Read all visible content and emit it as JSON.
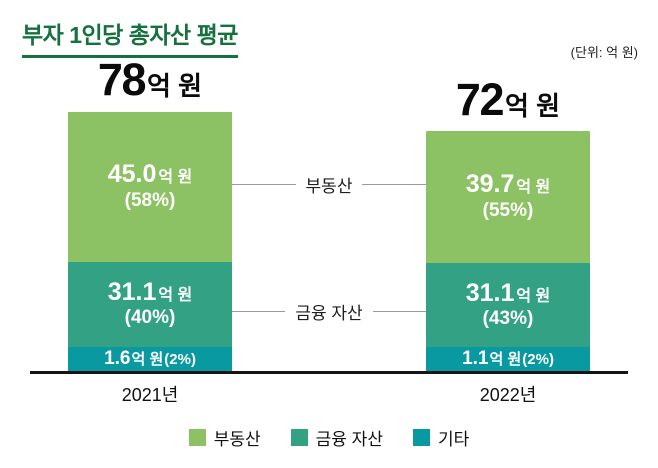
{
  "header": {
    "title": "부자 1인당 총자산 평균",
    "unit_note": "(단위: 억 원)"
  },
  "chart_data": {
    "type": "bar",
    "stacked": true,
    "title": "부자 1인당 총자산 평균",
    "unit": "억 원",
    "categories": [
      "2021년",
      "2022년"
    ],
    "totals": [
      78,
      72
    ],
    "series": [
      {
        "name": "부동산",
        "values": [
          45.0,
          39.7
        ],
        "percents": [
          58,
          55
        ]
      },
      {
        "name": "금융 자산",
        "values": [
          31.1,
          31.1
        ],
        "percents": [
          40,
          43
        ]
      },
      {
        "name": "기타",
        "values": [
          1.6,
          1.1
        ],
        "percents": [
          2,
          2
        ]
      }
    ],
    "colors": [
      "#8CC264",
      "#33A284",
      "#0899A1"
    ],
    "legend": [
      "부동산",
      "금융 자산",
      "기타"
    ],
    "legend_position": "bottom",
    "annotations": [
      {
        "text": "부동산"
      },
      {
        "text": "금융 자산"
      }
    ],
    "bars": [
      {
        "category": "2021년",
        "total_value": "78",
        "total_unit": "억 원",
        "segments": [
          {
            "name": "부동산",
            "value": 45.0,
            "value_text": "45.0",
            "unit_text": "억 원",
            "pct_text": "(58%)"
          },
          {
            "name": "금융 자산",
            "value": 31.1,
            "value_text": "31.1",
            "unit_text": "억 원",
            "pct_text": "(40%)"
          },
          {
            "name": "기타",
            "value": 1.6,
            "value_text": "1.6",
            "unit_text": "억 원",
            "pct_text": "(2%)"
          }
        ]
      },
      {
        "category": "2022년",
        "total_value": "72",
        "total_unit": "억 원",
        "segments": [
          {
            "name": "부동산",
            "value": 39.7,
            "value_text": "39.7",
            "unit_text": "억 원",
            "pct_text": "(55%)"
          },
          {
            "name": "금융 자산",
            "value": 31.1,
            "value_text": "31.1",
            "unit_text": "억 원",
            "pct_text": "(43%)"
          },
          {
            "name": "기타",
            "value": 1.1,
            "value_text": "1.1",
            "unit_text": "억 원",
            "pct_text": "(2%)"
          }
        ]
      }
    ]
  }
}
